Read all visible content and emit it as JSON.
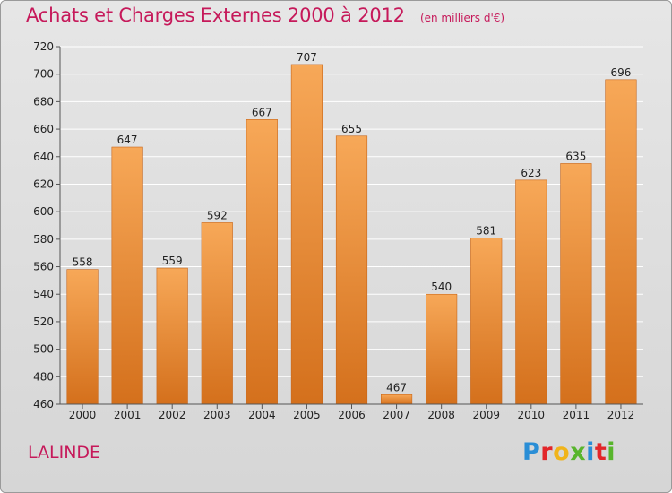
{
  "header": {
    "title": "Achats et Charges Externes 2000 à 2012",
    "unit": "(en milliers d'€)"
  },
  "footer": {
    "commune": "LALINDE",
    "logo": {
      "letters": [
        "P",
        "r",
        "o",
        "x",
        "i",
        "t",
        "i"
      ],
      "colors": [
        "#2a8ed6",
        "#e2262a",
        "#f0b41b",
        "#58b52c",
        "#2a8ed6",
        "#e2262a",
        "#58b52c"
      ]
    }
  },
  "colors": {
    "title": "#c6195a",
    "bar_light": "#f7a858",
    "bar_dark": "#d4701c",
    "grid": "#ffffff"
  },
  "chart_data": {
    "type": "bar",
    "title": "Achats et Charges Externes 2000 à 2012",
    "subtitle": "(en milliers d'€)",
    "categories": [
      "2000",
      "2001",
      "2002",
      "2003",
      "2004",
      "2005",
      "2006",
      "2007",
      "2008",
      "2009",
      "2010",
      "2011",
      "2012"
    ],
    "values": [
      558,
      647,
      559,
      592,
      667,
      707,
      655,
      467,
      540,
      581,
      623,
      635,
      696
    ],
    "ylim": [
      460,
      720
    ],
    "yticks": [
      460,
      480,
      500,
      520,
      540,
      560,
      580,
      600,
      620,
      640,
      660,
      680,
      700,
      720
    ],
    "grid": true,
    "data_labels": true
  }
}
